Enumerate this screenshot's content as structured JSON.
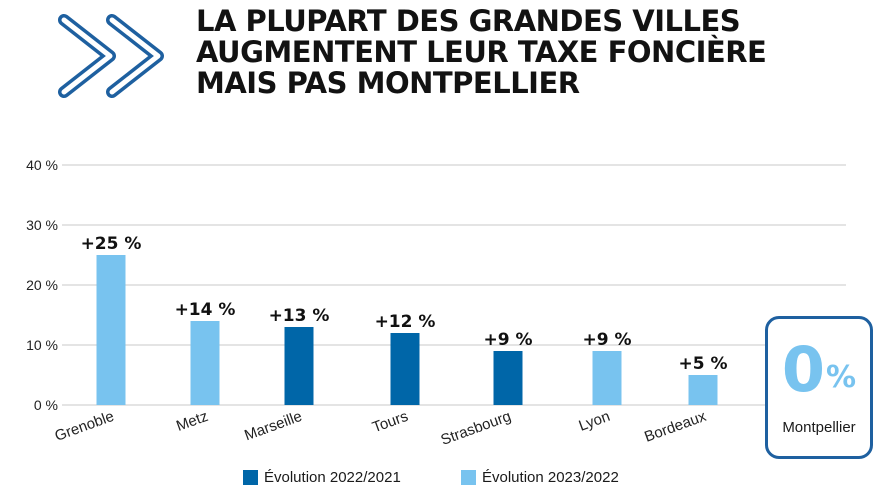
{
  "title_lines": [
    "LA PLUPART DES GRANDES VILLES",
    "AUGMENTENT LEUR TAXE FONCIÈRE",
    "MAIS PAS MONTPELLIER"
  ],
  "colors": {
    "dark_blue": "#0066a8",
    "light_blue": "#78c3ef",
    "logo_blue": "#1e60a0",
    "grid": "#c8c8c8"
  },
  "logo_icon": "double-chevron-right-icon",
  "chart_data": {
    "type": "bar",
    "categories": [
      "Grenoble",
      "Metz",
      "Marseille",
      "Tours",
      "Strasbourg",
      "Lyon",
      "Bordeaux"
    ],
    "values": [
      25,
      14,
      13,
      12,
      9,
      9,
      5
    ],
    "value_labels": [
      "+25 %",
      "+14 %",
      "+13 %",
      "+12 %",
      "+9 %",
      "+9 %",
      "+5 %"
    ],
    "series_index": [
      1,
      1,
      0,
      0,
      0,
      1,
      1
    ],
    "series": [
      {
        "name": "Évolution 2022/2021",
        "color": "#0066a8"
      },
      {
        "name": "Évolution 2023/2022",
        "color": "#78c3ef"
      }
    ],
    "yticks": [
      0,
      10,
      20,
      30,
      40
    ],
    "ytick_labels": [
      "0 %",
      "10 %",
      "20 %",
      "30 %",
      "40 %"
    ],
    "ylim": [
      0,
      40
    ],
    "grid": true,
    "legend_position": "bottom"
  },
  "callout": {
    "value": "0",
    "unit": "%",
    "label": "Montpellier"
  }
}
